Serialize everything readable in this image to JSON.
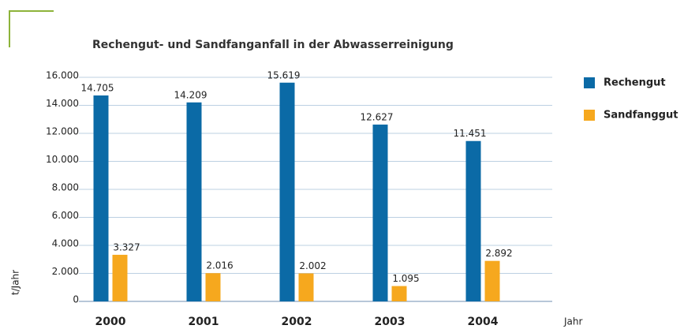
{
  "chart_data": {
    "type": "bar",
    "title": "Rechengut- und Sandfanganfall in der Abwasserreinigung",
    "y_label": "t/Jahr",
    "x_label": "Jahr",
    "categories": [
      "2000",
      "2001",
      "2002",
      "2003",
      "2004"
    ],
    "series": [
      {
        "name": "Rechengut",
        "color": "#0b6aa6",
        "values": [
          14705,
          14209,
          15619,
          12627,
          11451
        ],
        "value_labels": [
          "14.705",
          "14.209",
          "15.619",
          "12.627",
          "11.451"
        ]
      },
      {
        "name": "Sandfanggut",
        "color": "#f6a81e",
        "values": [
          3327,
          2016,
          2002,
          1095,
          2892
        ],
        "value_labels": [
          "3.327",
          "2.016",
          "2.002",
          "1.095",
          "2.892"
        ]
      }
    ],
    "ylim": [
      0,
      16000
    ],
    "yticks": [
      0,
      {
        "value": 2000,
        "label": "2.000"
      },
      {
        "value": 4000,
        "label": "4.000"
      },
      {
        "value": 6000,
        "label": "6.000"
      },
      {
        "value": 8000,
        "label": "8.000"
      },
      {
        "value": 10000,
        "label": "10.000"
      },
      {
        "value": 12000,
        "label": "12.000"
      },
      {
        "value": 14000,
        "label": "14.000"
      },
      {
        "value": 16000,
        "label": "16.000"
      }
    ],
    "grid": true,
    "legend": "right"
  }
}
